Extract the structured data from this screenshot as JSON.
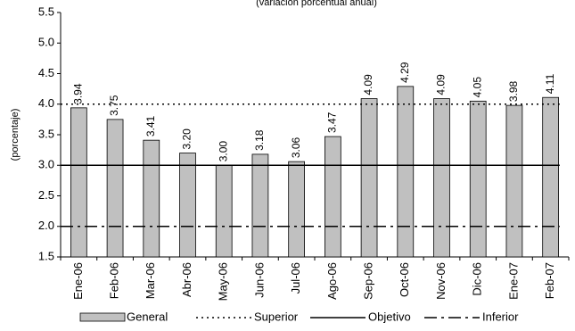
{
  "chart_data": {
    "type": "bar",
    "subtitle": "(variación porcentual anual)",
    "y_label": "(porcentaje)",
    "categories": [
      "Ene-06",
      "Feb-06",
      "Mar-06",
      "Abr-06",
      "May-06",
      "Jun-06",
      "Jul-06",
      "Ago-06",
      "Sep-06",
      "Oct-06",
      "Nov-06",
      "Dic-06",
      "Ene-07",
      "Feb-07"
    ],
    "series": [
      {
        "name": "General",
        "color": "#c0c0c0",
        "values": [
          3.94,
          3.75,
          3.41,
          3.2,
          3.0,
          3.18,
          3.06,
          3.47,
          4.09,
          4.29,
          4.09,
          4.05,
          3.98,
          4.11
        ],
        "value_labels": [
          "3.94",
          "3.75",
          "3.41",
          "3.20",
          "3.00",
          "3.18",
          "3.06",
          "3.47",
          "4.09",
          "4.29",
          "4.09",
          "4.05",
          "3.98",
          "4.11"
        ]
      }
    ],
    "lines": [
      {
        "name": "Superior",
        "value": 4,
        "dash": "2 4",
        "color": "#000000"
      },
      {
        "name": "Objetivo",
        "value": 3,
        "dash": "none",
        "color": "#000000"
      },
      {
        "name": "Inferior",
        "value": 2,
        "dash": "14 5 3 5",
        "color": "#000000"
      }
    ],
    "ylim": [
      1.5,
      5.5
    ],
    "yticks": [
      1.5,
      {
        "value": 2,
        "label": "2.0"
      },
      2.5,
      {
        "value": 3,
        "label": "3.0"
      },
      3.5,
      {
        "value": 4,
        "label": "4.0"
      },
      4.5,
      {
        "value": 5,
        "label": "5.0"
      },
      5.5
    ]
  }
}
